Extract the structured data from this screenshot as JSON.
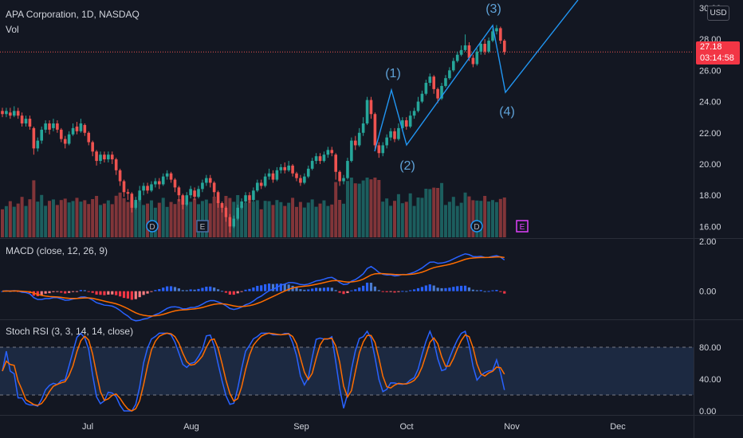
{
  "header": {
    "symbol_title": "APA Corporation, 1D, NASDAQ",
    "volume_label": "Vol",
    "currency_badge": "USD"
  },
  "price_tag": {
    "price": "27.18",
    "countdown": "03:14:58",
    "color": "#f23645"
  },
  "indicators": {
    "macd_label": "MACD (close, 12, 26, 9)",
    "stoch_label": "Stoch RSI (3, 3, 14, 14, close)"
  },
  "colors": {
    "background": "#131722",
    "up": "#26a69a",
    "down": "#ef5350",
    "wave_line": "#2196f3",
    "wave_label": "#5fa2d8",
    "macd_line": "#2962ff",
    "signal_line": "#ff6d00",
    "stoch_k": "#2962ff",
    "stoch_d": "#ff6d00",
    "stoch_band": "#1e2b45",
    "earnings_marker": "#e040fb"
  },
  "x_axis": {
    "labels": [
      "Jul",
      "Aug",
      "Sep",
      "Oct",
      "Nov",
      "Dec"
    ]
  },
  "price_axis": {
    "labels": [
      "30.00",
      "28.00",
      "26.00",
      "24.00",
      "22.00",
      "20.00",
      "18.00",
      "16.00"
    ]
  },
  "macd_axis": {
    "labels": [
      "2.00",
      "0.00"
    ]
  },
  "stoch_axis": {
    "labels": [
      "80.00",
      "40.00",
      "0.00"
    ]
  },
  "wave_labels": [
    "(1)",
    "(2)",
    "(3)",
    "(4)"
  ],
  "markers": {
    "dividend": "D",
    "earnings": "E"
  },
  "chart_data": {
    "type": "candlestick",
    "price_range": [
      15,
      30.2
    ],
    "candles": [
      [
        23.4,
        23.2,
        23.6,
        23.0
      ],
      [
        23.2,
        23.4,
        23.6,
        23.0
      ],
      [
        23.3,
        23.1,
        23.6,
        22.9
      ],
      [
        23.1,
        23.4,
        23.7,
        23.0
      ],
      [
        23.4,
        23.1,
        23.6,
        22.9
      ],
      [
        23.1,
        22.6,
        23.3,
        22.4
      ],
      [
        22.6,
        22.9,
        23.1,
        22.4
      ],
      [
        22.9,
        22.4,
        23.1,
        22.2
      ],
      [
        22.3,
        21.0,
        22.4,
        20.6
      ],
      [
        21.0,
        21.5,
        21.7,
        20.8
      ],
      [
        21.5,
        22.2,
        22.4,
        21.3
      ],
      [
        22.2,
        22.6,
        22.8,
        22.0
      ],
      [
        22.6,
        22.2,
        22.8,
        21.9
      ],
      [
        22.3,
        22.6,
        22.9,
        22.1
      ],
      [
        22.6,
        22.2,
        22.8,
        22.0
      ],
      [
        22.2,
        21.6,
        22.3,
        21.4
      ],
      [
        21.6,
        21.3,
        21.8,
        21.0
      ],
      [
        21.3,
        21.9,
        22.1,
        21.2
      ],
      [
        21.9,
        22.3,
        22.6,
        21.8
      ],
      [
        22.4,
        22.1,
        22.7,
        21.9
      ],
      [
        22.1,
        22.6,
        22.9,
        22.0
      ],
      [
        22.5,
        22.0,
        22.6,
        21.8
      ],
      [
        22.0,
        21.4,
        22.1,
        21.2
      ],
      [
        21.4,
        20.8,
        21.5,
        20.5
      ],
      [
        20.8,
        20.2,
        20.9,
        19.9
      ],
      [
        20.2,
        20.6,
        20.8,
        20.0
      ],
      [
        20.6,
        20.3,
        20.8,
        20.1
      ],
      [
        20.3,
        20.6,
        20.8,
        20.1
      ],
      [
        20.6,
        20.3,
        20.8,
        20.0
      ],
      [
        20.3,
        19.6,
        20.4,
        19.3
      ],
      [
        19.6,
        18.9,
        19.7,
        18.6
      ],
      [
        18.9,
        18.2,
        19.0,
        17.9
      ],
      [
        18.2,
        18.1,
        18.4,
        17.7
      ],
      [
        18.1,
        17.2,
        18.2,
        16.9
      ],
      [
        17.2,
        17.7,
        17.9,
        17.1
      ],
      [
        17.7,
        18.3,
        18.6,
        17.6
      ],
      [
        18.3,
        18.6,
        18.8,
        18.0
      ],
      [
        18.6,
        18.3,
        18.8,
        18.1
      ],
      [
        18.3,
        18.7,
        18.9,
        18.2
      ],
      [
        18.7,
        18.9,
        19.1,
        18.5
      ],
      [
        18.9,
        18.7,
        19.1,
        18.4
      ],
      [
        18.7,
        19.2,
        19.4,
        18.6
      ],
      [
        19.2,
        19.4,
        19.6,
        19.0
      ],
      [
        19.4,
        19.0,
        19.5,
        18.8
      ],
      [
        19.0,
        18.5,
        19.1,
        18.2
      ],
      [
        18.5,
        18.0,
        18.6,
        17.6
      ],
      [
        18.0,
        17.4,
        18.1,
        17.1
      ],
      [
        17.4,
        18.0,
        18.2,
        17.3
      ],
      [
        18.0,
        18.4,
        18.6,
        17.8
      ],
      [
        18.3,
        17.9,
        18.5,
        17.7
      ],
      [
        17.9,
        18.4,
        18.6,
        17.8
      ],
      [
        18.4,
        18.8,
        19.0,
        18.2
      ],
      [
        18.8,
        19.1,
        19.3,
        18.6
      ],
      [
        19.1,
        18.8,
        19.3,
        18.5
      ],
      [
        18.8,
        18.2,
        18.9,
        17.9
      ],
      [
        18.2,
        17.5,
        18.3,
        17.2
      ],
      [
        17.5,
        17.2,
        17.6,
        16.9
      ],
      [
        17.2,
        16.6,
        17.3,
        16.3
      ],
      [
        16.6,
        16.0,
        16.8,
        15.6
      ],
      [
        16.0,
        16.5,
        16.7,
        15.9
      ],
      [
        16.5,
        17.2,
        17.4,
        16.4
      ],
      [
        17.2,
        17.6,
        17.8,
        17.1
      ],
      [
        17.6,
        18.0,
        18.2,
        17.5
      ],
      [
        18.0,
        17.7,
        18.2,
        17.5
      ],
      [
        17.7,
        18.3,
        18.5,
        17.6
      ],
      [
        18.3,
        18.8,
        19.0,
        18.2
      ],
      [
        18.8,
        18.6,
        19.0,
        18.4
      ],
      [
        18.6,
        19.2,
        19.4,
        18.5
      ],
      [
        19.2,
        19.4,
        19.7,
        19.0
      ],
      [
        19.4,
        19.0,
        19.6,
        18.8
      ],
      [
        19.0,
        19.6,
        19.8,
        18.9
      ],
      [
        19.6,
        19.8,
        20.0,
        19.4
      ],
      [
        19.8,
        19.6,
        20.1,
        19.4
      ],
      [
        19.6,
        19.9,
        20.2,
        19.5
      ],
      [
        19.9,
        19.4,
        20.0,
        19.2
      ],
      [
        19.4,
        19.1,
        19.5,
        18.9
      ],
      [
        19.1,
        18.8,
        19.3,
        18.6
      ],
      [
        18.8,
        19.2,
        19.4,
        18.7
      ],
      [
        19.2,
        19.7,
        19.9,
        19.1
      ],
      [
        19.7,
        20.2,
        20.4,
        19.6
      ],
      [
        20.2,
        20.5,
        20.7,
        20.0
      ],
      [
        20.5,
        20.2,
        20.7,
        20.0
      ],
      [
        20.2,
        20.6,
        20.8,
        20.1
      ],
      [
        20.6,
        20.9,
        21.1,
        20.4
      ],
      [
        20.9,
        20.7,
        21.1,
        20.5
      ],
      [
        20.6,
        19.5,
        20.7,
        19.0
      ],
      [
        19.5,
        18.9,
        19.6,
        18.6
      ],
      [
        18.9,
        19.1,
        19.3,
        18.7
      ],
      [
        19.1,
        20.2,
        20.4,
        19.0
      ],
      [
        20.2,
        21.5,
        21.7,
        20.1
      ],
      [
        21.5,
        21.2,
        21.8,
        20.9
      ],
      [
        21.2,
        22.0,
        22.3,
        21.1
      ],
      [
        22.0,
        22.6,
        23.0,
        21.8
      ],
      [
        22.6,
        24.1,
        24.3,
        22.5
      ],
      [
        24.1,
        23.2,
        24.3,
        22.9
      ],
      [
        23.2,
        21.2,
        23.3,
        20.9
      ],
      [
        21.2,
        20.7,
        21.4,
        20.4
      ],
      [
        20.7,
        21.2,
        21.4,
        20.5
      ],
      [
        21.2,
        21.7,
        21.9,
        21.0
      ],
      [
        21.7,
        22.1,
        22.3,
        21.5
      ],
      [
        22.1,
        21.6,
        22.3,
        21.4
      ],
      [
        21.6,
        22.3,
        22.6,
        21.5
      ],
      [
        22.3,
        22.8,
        23.0,
        22.1
      ],
      [
        22.8,
        22.4,
        23.0,
        22.2
      ],
      [
        22.4,
        23.1,
        23.4,
        22.3
      ],
      [
        23.1,
        23.4,
        23.6,
        22.9
      ],
      [
        23.4,
        24.0,
        24.3,
        23.3
      ],
      [
        24.0,
        24.5,
        24.7,
        23.9
      ],
      [
        24.5,
        25.2,
        25.4,
        24.4
      ],
      [
        25.2,
        25.6,
        25.8,
        25.0
      ],
      [
        25.6,
        24.8,
        25.7,
        24.5
      ],
      [
        24.8,
        24.2,
        24.9,
        23.9
      ],
      [
        24.2,
        25.0,
        25.2,
        24.1
      ],
      [
        25.0,
        25.5,
        25.7,
        24.9
      ],
      [
        25.5,
        26.0,
        26.2,
        25.4
      ],
      [
        26.0,
        26.6,
        26.8,
        25.9
      ],
      [
        26.6,
        27.0,
        27.2,
        26.5
      ],
      [
        27.0,
        27.3,
        27.6,
        26.9
      ],
      [
        27.3,
        27.6,
        28.3,
        27.2
      ],
      [
        27.6,
        26.8,
        27.8,
        26.6
      ],
      [
        26.8,
        26.4,
        27.0,
        26.2
      ],
      [
        26.4,
        27.2,
        27.4,
        26.3
      ],
      [
        27.2,
        27.7,
        27.9,
        27.0
      ],
      [
        27.7,
        27.2,
        28.0,
        27.0
      ],
      [
        27.2,
        27.9,
        28.1,
        27.1
      ],
      [
        27.9,
        28.5,
        28.7,
        27.8
      ],
      [
        28.5,
        28.7,
        28.9,
        28.3
      ],
      [
        28.7,
        27.9,
        28.8,
        27.7
      ],
      [
        27.9,
        27.18,
        28.0,
        27.0
      ]
    ],
    "current_price": 27.18,
    "elliott_wave_projection": [
      {
        "label": "(1)",
        "price": 24.3
      },
      {
        "label": "(2)",
        "price": 20.4
      },
      {
        "label": "(3)",
        "price": 28.8
      },
      {
        "label": "(4)",
        "price": 24.1
      }
    ],
    "macd_range": [
      -1.1,
      2.1
    ],
    "stoch_rsi_levels": [
      80,
      20
    ]
  }
}
